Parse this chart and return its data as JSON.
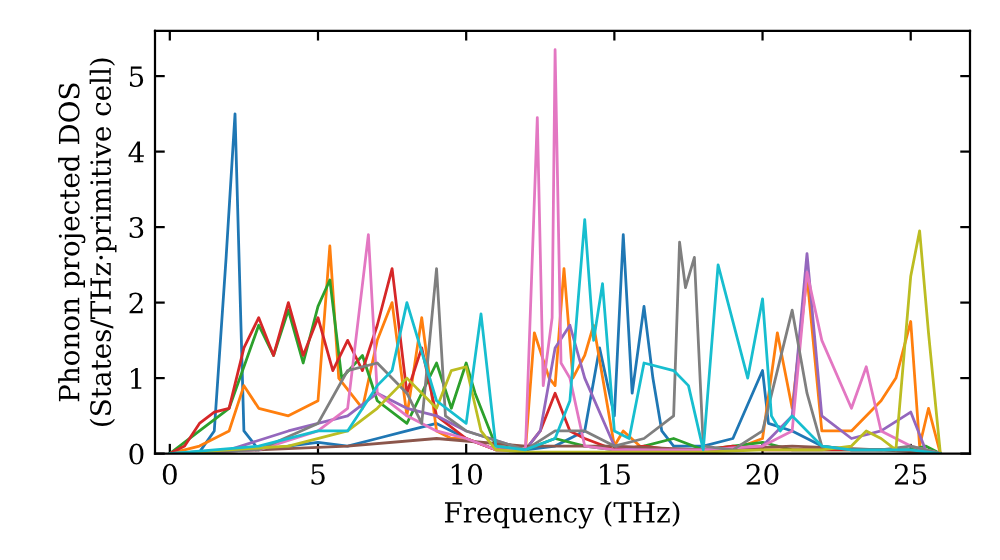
{
  "chart_data": {
    "type": "line",
    "xlabel": "Frequency (THz)",
    "ylabel": "Phonon projected DOS\n(States/THz·primitive cell)",
    "xlim": [
      -0.5,
      27
    ],
    "ylim": [
      0,
      5.6
    ],
    "xticks": [
      0,
      5,
      10,
      15,
      20,
      25
    ],
    "yticks": [
      0,
      1,
      2,
      3,
      4,
      5
    ],
    "grid": false,
    "marker": "none",
    "line_style": "solid",
    "series": [
      {
        "color": "#1f77b4",
        "x": [
          0,
          1,
          1.5,
          1.9,
          2.2,
          2.5,
          3,
          4,
          5,
          6,
          7,
          8,
          9,
          10,
          11,
          12,
          13,
          14,
          14.5,
          15,
          15.3,
          15.6,
          16,
          16.3,
          16.6,
          17,
          18,
          19,
          20,
          20.2,
          21,
          22,
          23,
          24,
          25,
          26
        ],
        "values": [
          0,
          0.02,
          0.3,
          2.6,
          4.5,
          0.3,
          0.05,
          0.1,
          0.15,
          0.1,
          0.2,
          0.3,
          0.4,
          0.2,
          0.05,
          0.05,
          0.1,
          0.3,
          1.4,
          0.5,
          2.9,
          0.8,
          1.95,
          1.0,
          0.3,
          0.1,
          0.1,
          0.2,
          1.1,
          0.4,
          0.3,
          0.1,
          0.05,
          0.05,
          0.05,
          0
        ]
      },
      {
        "color": "#ff7f0e",
        "x": [
          0,
          1,
          2,
          2.5,
          3,
          4,
          5,
          5.4,
          5.7,
          6.5,
          7,
          7.5,
          8,
          8.5,
          9,
          9.5,
          10,
          11,
          12,
          12.3,
          12.8,
          13,
          13.3,
          13.6,
          14,
          14.3,
          15,
          15.3,
          16,
          17,
          18,
          19,
          20,
          20.5,
          21,
          21.5,
          22,
          23,
          24,
          24.5,
          25,
          25.3,
          25.6,
          26
        ],
        "values": [
          0,
          0.1,
          0.3,
          0.9,
          0.6,
          0.5,
          0.7,
          2.75,
          1.0,
          0.6,
          1.5,
          2.0,
          0.5,
          1.8,
          0.3,
          0.2,
          0.2,
          0.05,
          0.05,
          1.6,
          1.0,
          0.9,
          2.45,
          1.0,
          1.3,
          1.7,
          0.1,
          0.3,
          0.05,
          0.05,
          0.05,
          0.05,
          0.2,
          1.6,
          0.6,
          2.35,
          0.3,
          0.3,
          0.7,
          1.0,
          1.75,
          0.1,
          0.6,
          0
        ]
      },
      {
        "color": "#2ca02c",
        "x": [
          0,
          1,
          2,
          3,
          3.5,
          4,
          4.5,
          5,
          5.4,
          5.8,
          6.5,
          7,
          8,
          9,
          9.5,
          10,
          10.3,
          11,
          12,
          13,
          14,
          15,
          16,
          17,
          18,
          19,
          20,
          21,
          22,
          23,
          24,
          25,
          25.5,
          26
        ],
        "values": [
          0,
          0.3,
          0.6,
          1.7,
          1.3,
          1.9,
          1.2,
          1.95,
          2.3,
          1.0,
          1.3,
          0.7,
          0.4,
          1.2,
          0.6,
          1.2,
          0.8,
          0.1,
          0.05,
          0.2,
          0.1,
          0.05,
          0.1,
          0.2,
          0.05,
          0.1,
          0.15,
          0.05,
          0.05,
          0.05,
          0.05,
          0.05,
          0.1,
          0
        ]
      },
      {
        "color": "#d62728",
        "x": [
          0,
          0.5,
          1,
          1.5,
          2,
          2.5,
          3,
          3.5,
          4,
          4.5,
          5,
          5.5,
          6,
          6.5,
          7,
          7.5,
          8,
          8.5,
          9,
          10,
          11,
          12,
          12.5,
          13,
          13.5,
          14,
          15,
          16,
          17,
          18,
          19,
          20,
          21,
          22,
          23,
          24
        ],
        "values": [
          0,
          0.1,
          0.4,
          0.55,
          0.6,
          1.4,
          1.8,
          1.3,
          2.0,
          1.3,
          1.8,
          1.1,
          1.5,
          1.1,
          1.7,
          2.45,
          0.8,
          1.4,
          0.5,
          0.2,
          0.05,
          0.05,
          0.3,
          0.8,
          0.3,
          0.2,
          0.05,
          0.1,
          0.05,
          0.05,
          0.1,
          0.05,
          0.05,
          0.05,
          0.05,
          0.05
        ]
      },
      {
        "color": "#9467bd",
        "x": [
          0,
          2,
          4,
          6,
          7,
          8,
          9,
          10,
          12,
          12.5,
          13,
          13.5,
          14,
          15,
          16,
          18,
          20,
          21,
          21.5,
          22,
          23,
          24,
          25,
          25.5,
          26
        ],
        "values": [
          0,
          0.05,
          0.3,
          0.5,
          0.8,
          0.6,
          0.5,
          0.3,
          0.05,
          0.3,
          1.4,
          1.7,
          1.0,
          0.1,
          0.05,
          0.05,
          0.1,
          0.5,
          2.65,
          0.5,
          0.2,
          0.3,
          0.55,
          0.05,
          0
        ]
      },
      {
        "color": "#8c564b",
        "x": [
          0,
          3,
          6,
          9,
          12,
          15,
          18,
          21,
          24,
          26
        ],
        "values": [
          0,
          0.05,
          0.1,
          0.2,
          0.1,
          0.1,
          0.05,
          0.1,
          0.05,
          0
        ]
      },
      {
        "color": "#e377c2",
        "x": [
          0,
          3,
          5,
          6,
          6.7,
          7,
          8,
          9,
          10,
          11,
          12,
          12.4,
          12.6,
          12.9,
          13.0,
          13.2,
          13.5,
          14,
          15,
          18,
          20,
          21,
          21.5,
          22,
          23,
          23.5,
          24,
          25,
          26
        ],
        "values": [
          0,
          0.05,
          0.3,
          0.6,
          2.9,
          0.8,
          0.5,
          0.3,
          0.2,
          0.05,
          0.05,
          4.45,
          0.9,
          1.8,
          5.35,
          1.2,
          1.0,
          0.1,
          0.05,
          0.05,
          0.1,
          0.3,
          2.4,
          1.5,
          0.6,
          1.15,
          0.3,
          0.1,
          0
        ]
      },
      {
        "color": "#7f7f7f",
        "x": [
          0,
          3,
          5,
          6,
          7,
          8,
          8.5,
          9,
          9.3,
          10,
          12,
          13,
          14,
          15,
          16,
          17,
          17.2,
          17.4,
          17.7,
          18,
          19,
          20,
          20.5,
          21,
          21.5,
          22,
          23,
          24,
          25,
          26
        ],
        "values": [
          0,
          0.05,
          0.4,
          1.1,
          1.2,
          0.8,
          0.4,
          2.45,
          0.5,
          0.3,
          0.05,
          0.3,
          0.3,
          0.1,
          0.2,
          0.5,
          2.8,
          2.2,
          2.6,
          0.1,
          0.05,
          0.3,
          1.1,
          1.9,
          0.8,
          0.1,
          0.05,
          0.05,
          0.1,
          0
        ]
      },
      {
        "color": "#bcbd22",
        "x": [
          0,
          4,
          6,
          7,
          8,
          9,
          9.5,
          10,
          10.5,
          11,
          12,
          15,
          18,
          20,
          22,
          23,
          23.5,
          24,
          24.5,
          25,
          25.3,
          25.6,
          26
        ],
        "values": [
          0,
          0.1,
          0.3,
          0.6,
          1.0,
          0.6,
          1.1,
          1.15,
          0.3,
          0.05,
          0.02,
          0.02,
          0.02,
          0.05,
          0.05,
          0.1,
          0.3,
          0.2,
          0.05,
          2.35,
          2.95,
          1.6,
          0
        ]
      },
      {
        "color": "#17becf",
        "x": [
          0,
          3,
          5,
          6,
          7,
          7.5,
          8,
          9,
          10,
          10.5,
          11,
          12,
          13,
          13.5,
          14,
          14.3,
          14.6,
          15,
          15.5,
          16,
          17,
          17.5,
          18,
          18.5,
          19.5,
          20,
          20.3,
          20.6,
          21,
          22,
          23,
          24,
          25,
          26
        ],
        "values": [
          0,
          0.1,
          0.3,
          0.3,
          0.9,
          1.1,
          2.0,
          0.7,
          0.4,
          1.85,
          0.1,
          0.05,
          0.2,
          0.7,
          3.1,
          1.5,
          2.25,
          0.3,
          0.2,
          1.2,
          1.1,
          0.9,
          0.05,
          2.5,
          1.0,
          2.05,
          0.5,
          0.3,
          0.5,
          0.1,
          0.05,
          0.05,
          0.05,
          0
        ]
      }
    ]
  }
}
